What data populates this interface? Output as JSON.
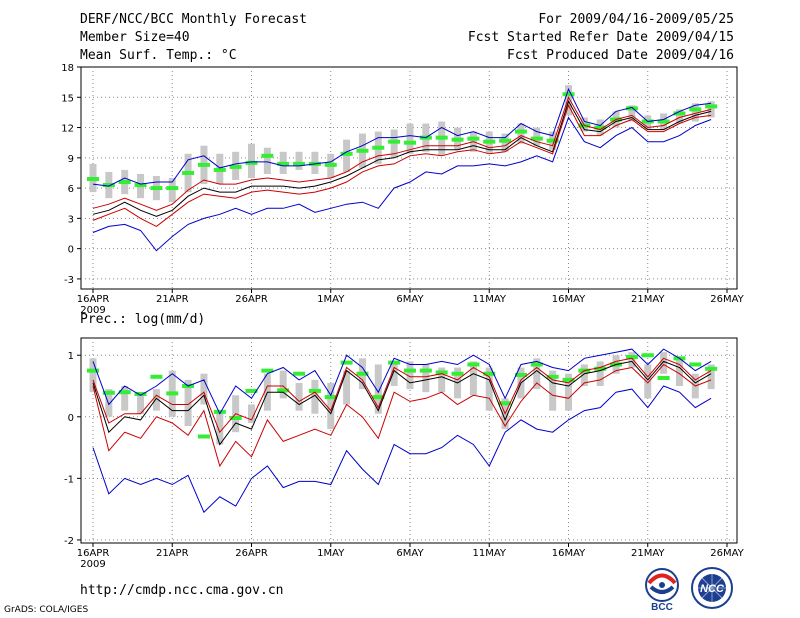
{
  "header": {
    "title": "DERF/NCC/BCC Monthly Forecast",
    "member_size": "Member Size=40",
    "variable": "Mean Surf. Temp.: °C",
    "period": "For 2009/04/16-2009/05/25",
    "fcst_started": "Fcst Started Refer Date 2009/04/15",
    "fcst_produced": "Fcst Produced Date 2009/04/16"
  },
  "footer": {
    "url": "http://cmdp.ncc.cma.gov.cn",
    "grads": "GrADS: COLA/IGES",
    "logo_bcc": "BCC",
    "logo_ncc": "NCC"
  },
  "colors": {
    "spread": "#c8c8c8",
    "mean": "#000000",
    "inner": "#cc0000",
    "outer": "#0000cc",
    "clim": "#33ee33"
  },
  "chart_data": [
    {
      "type": "line",
      "name": "temperature",
      "title": "Mean Surf. Temp.: °C",
      "xlabel": "",
      "ylabel": "",
      "xlim": [
        0,
        40
      ],
      "ylim": [
        -4,
        18
      ],
      "yticks": [
        -3,
        0,
        3,
        6,
        9,
        12,
        15,
        18
      ],
      "xticks": [
        {
          "x": 0,
          "label": "16APR"
        },
        {
          "x": 5,
          "label": "21APR"
        },
        {
          "x": 10,
          "label": "26APR"
        },
        {
          "x": 15,
          "label": "1MAY"
        },
        {
          "x": 20,
          "label": "6MAY"
        },
        {
          "x": 25,
          "label": "11MAY"
        },
        {
          "x": 30,
          "label": "16MAY"
        },
        {
          "x": 35,
          "label": "21MAY"
        },
        {
          "x": 40,
          "label": "26MAY"
        }
      ],
      "year_label": "2009",
      "bar_low": [
        5.6,
        5.0,
        5.4,
        5.0,
        4.8,
        4.6,
        5.6,
        6.4,
        6.4,
        6.8,
        7.0,
        7.4,
        7.4,
        7.8,
        7.4,
        7.0,
        7.6,
        8.0,
        8.4,
        9.0,
        9.4,
        9.6,
        9.2,
        9.8,
        9.6,
        9.4,
        9.6,
        10.4,
        10.2,
        9.8,
        13.2,
        11.6,
        11.2,
        12.0,
        12.6,
        11.8,
        11.8,
        12.4,
        12.6,
        13.0
      ],
      "bar_high": [
        8.4,
        7.6,
        7.8,
        7.4,
        7.2,
        7.0,
        9.4,
        10.2,
        9.4,
        9.6,
        10.4,
        10.0,
        9.6,
        9.6,
        9.6,
        9.4,
        10.8,
        11.4,
        11.6,
        11.8,
        12.4,
        12.4,
        12.6,
        12.0,
        11.6,
        11.6,
        11.4,
        12.4,
        12.0,
        11.6,
        16.2,
        13.0,
        12.8,
        13.6,
        14.2,
        13.2,
        13.4,
        13.8,
        14.4,
        14.6
      ],
      "clim": [
        6.9,
        6.3,
        6.6,
        6.3,
        6.0,
        6.0,
        7.5,
        8.3,
        7.8,
        8.1,
        8.5,
        9.2,
        8.4,
        8.4,
        8.4,
        8.3,
        9.4,
        9.7,
        10.0,
        10.6,
        10.5,
        11.0,
        11.0,
        10.8,
        10.9,
        10.6,
        10.7,
        11.6,
        10.9,
        10.7,
        15.3,
        12.2,
        12.0,
        12.8,
        13.9,
        12.6,
        12.6,
        13.4,
        13.8,
        14.1
      ],
      "series": [
        {
          "name": "outer_upper",
          "color": "outer",
          "values": [
            6.4,
            6.2,
            7.0,
            6.4,
            6.6,
            6.6,
            8.8,
            9.2,
            8.0,
            8.4,
            8.6,
            8.6,
            8.2,
            8.2,
            8.4,
            8.6,
            9.6,
            10.2,
            11.0,
            11.0,
            11.2,
            11.0,
            12.0,
            11.2,
            11.6,
            11.0,
            11.0,
            12.4,
            11.6,
            11.2,
            15.8,
            12.6,
            12.2,
            13.6,
            14.0,
            12.6,
            12.8,
            13.6,
            14.2,
            14.4
          ]
        },
        {
          "name": "inner_upper",
          "color": "inner",
          "values": [
            4.0,
            4.4,
            5.0,
            4.4,
            3.8,
            4.4,
            5.8,
            6.8,
            6.4,
            6.4,
            6.8,
            7.0,
            6.8,
            6.6,
            6.8,
            7.0,
            7.6,
            8.6,
            9.2,
            9.4,
            9.8,
            10.2,
            10.2,
            10.2,
            10.6,
            10.0,
            10.2,
            11.2,
            10.6,
            10.2,
            15.0,
            12.2,
            11.8,
            12.8,
            13.2,
            12.0,
            12.2,
            13.0,
            13.4,
            13.8
          ]
        },
        {
          "name": "mean",
          "color": "mean",
          "values": [
            3.4,
            3.8,
            4.6,
            3.8,
            3.2,
            3.8,
            5.2,
            6.0,
            5.6,
            5.6,
            6.2,
            6.2,
            6.2,
            6.0,
            6.2,
            6.6,
            7.2,
            8.0,
            8.8,
            9.0,
            9.6,
            9.8,
            9.8,
            9.8,
            10.2,
            9.8,
            9.8,
            11.0,
            10.2,
            9.6,
            14.6,
            11.8,
            11.6,
            12.6,
            13.0,
            11.8,
            11.8,
            12.6,
            13.2,
            13.6
          ]
        },
        {
          "name": "inner_lower",
          "color": "inner",
          "values": [
            2.8,
            3.4,
            4.0,
            3.0,
            2.2,
            3.4,
            4.6,
            5.4,
            5.2,
            5.0,
            5.6,
            5.8,
            5.6,
            5.4,
            5.6,
            6.0,
            6.6,
            7.6,
            8.2,
            8.4,
            9.2,
            9.4,
            9.2,
            9.6,
            9.8,
            9.4,
            9.6,
            10.6,
            10.0,
            9.4,
            14.2,
            11.2,
            11.2,
            12.2,
            12.8,
            11.6,
            11.6,
            12.4,
            13.0,
            13.2
          ]
        },
        {
          "name": "outer_lower",
          "color": "outer",
          "values": [
            1.6,
            2.2,
            2.4,
            1.8,
            -0.2,
            1.2,
            2.4,
            3.0,
            3.4,
            4.0,
            3.4,
            4.0,
            4.0,
            4.4,
            3.6,
            4.0,
            4.4,
            4.6,
            4.0,
            6.0,
            6.6,
            7.6,
            7.4,
            8.2,
            8.2,
            8.4,
            8.2,
            8.6,
            9.2,
            8.6,
            13.0,
            10.6,
            10.0,
            11.2,
            12.0,
            10.6,
            10.6,
            11.2,
            12.2,
            12.8
          ]
        }
      ]
    },
    {
      "type": "line",
      "name": "precipitation",
      "title": "Prec.: log(mm/d)",
      "xlabel": "",
      "ylabel": "",
      "xlim": [
        0,
        40
      ],
      "ylim": [
        -2.05,
        1.28
      ],
      "yticks": [
        -2,
        -1,
        0,
        1
      ],
      "xticks": [
        {
          "x": 0,
          "label": "16APR"
        },
        {
          "x": 5,
          "label": "21APR"
        },
        {
          "x": 10,
          "label": "26APR"
        },
        {
          "x": 15,
          "label": "1MAY"
        },
        {
          "x": 20,
          "label": "6MAY"
        },
        {
          "x": 25,
          "label": "11MAY"
        },
        {
          "x": 30,
          "label": "16MAY"
        },
        {
          "x": 35,
          "label": "21MAY"
        },
        {
          "x": 40,
          "label": "26MAY"
        }
      ],
      "year_label": "2009",
      "bar_low": [
        0.4,
        0.0,
        0.1,
        0.05,
        0.1,
        0.0,
        -0.15,
        0.2,
        -0.45,
        -0.25,
        -0.1,
        0.1,
        0.3,
        0.1,
        0.05,
        -0.2,
        0.2,
        0.45,
        0.05,
        0.5,
        0.45,
        0.4,
        0.4,
        0.3,
        0.35,
        0.1,
        -0.2,
        0.3,
        0.45,
        0.1,
        0.1,
        0.5,
        0.5,
        0.7,
        0.8,
        0.3,
        0.7,
        0.5,
        0.3,
        0.45
      ],
      "bar_high": [
        0.95,
        0.45,
        0.5,
        0.4,
        0.45,
        0.75,
        0.6,
        0.7,
        0.1,
        0.35,
        0.2,
        0.7,
        0.75,
        0.55,
        0.6,
        0.55,
        0.75,
        0.95,
        0.85,
        0.9,
        0.9,
        0.85,
        0.8,
        0.8,
        0.9,
        0.8,
        0.3,
        0.8,
        0.95,
        0.75,
        0.7,
        0.85,
        0.9,
        1.0,
        1.05,
        0.85,
        1.05,
        0.95,
        0.7,
        0.85
      ],
      "clim": [
        0.75,
        0.39,
        0.4,
        0.37,
        0.65,
        0.38,
        0.5,
        -0.32,
        0.08,
        -0.02,
        0.42,
        0.75,
        0.43,
        0.7,
        0.42,
        0.32,
        0.88,
        0.7,
        0.32,
        0.88,
        0.75,
        0.75,
        0.72,
        0.7,
        0.85,
        0.7,
        0.22,
        0.68,
        0.85,
        0.65,
        0.6,
        0.75,
        0.78,
        0.85,
        0.97,
        1.0,
        0.63,
        0.95,
        0.85,
        0.78
      ],
      "series": [
        {
          "name": "outer_upper",
          "color": "outer",
          "values": [
            0.9,
            0.2,
            0.5,
            0.35,
            0.5,
            0.7,
            0.5,
            0.6,
            0.05,
            0.5,
            0.3,
            0.7,
            0.8,
            0.6,
            0.75,
            0.35,
            1.0,
            0.8,
            0.4,
            0.95,
            0.85,
            0.85,
            0.9,
            0.85,
            1.0,
            0.85,
            0.3,
            0.85,
            0.9,
            0.8,
            0.75,
            0.95,
            1.0,
            1.05,
            1.1,
            0.85,
            1.1,
            0.95,
            0.75,
            0.9
          ]
        },
        {
          "name": "inner_upper",
          "color": "inner",
          "values": [
            0.6,
            -0.1,
            0.05,
            0.05,
            0.35,
            0.2,
            0.2,
            0.4,
            -0.25,
            0.05,
            -0.05,
            0.5,
            0.5,
            0.25,
            0.4,
            0.1,
            0.8,
            0.6,
            0.15,
            0.8,
            0.65,
            0.65,
            0.7,
            0.6,
            0.8,
            0.65,
            0.05,
            0.6,
            0.8,
            0.6,
            0.55,
            0.75,
            0.8,
            0.9,
            0.95,
            0.65,
            0.95,
            0.85,
            0.6,
            0.75
          ]
        },
        {
          "name": "mean",
          "color": "mean",
          "values": [
            0.55,
            -0.25,
            0.0,
            -0.05,
            0.3,
            0.1,
            0.1,
            0.35,
            -0.45,
            -0.1,
            -0.2,
            0.4,
            0.4,
            0.2,
            0.35,
            0.05,
            0.75,
            0.55,
            0.1,
            0.75,
            0.55,
            0.6,
            0.65,
            0.55,
            0.7,
            0.6,
            -0.05,
            0.55,
            0.75,
            0.55,
            0.5,
            0.7,
            0.75,
            0.85,
            0.9,
            0.6,
            0.9,
            0.8,
            0.55,
            0.7
          ]
        },
        {
          "name": "inner_lower",
          "color": "inner",
          "values": [
            0.5,
            -0.55,
            -0.25,
            -0.35,
            0.0,
            -0.1,
            -0.3,
            0.1,
            -0.8,
            -0.4,
            -0.65,
            -0.05,
            -0.4,
            -0.3,
            -0.2,
            -0.3,
            0.2,
            0.0,
            -0.35,
            0.4,
            0.25,
            0.3,
            0.4,
            0.2,
            0.35,
            0.3,
            -0.15,
            0.25,
            0.55,
            0.35,
            0.3,
            0.55,
            0.6,
            0.75,
            0.8,
            0.55,
            0.85,
            0.7,
            0.5,
            0.6
          ]
        },
        {
          "name": "outer_lower",
          "color": "outer",
          "values": [
            -0.5,
            -1.25,
            -1.0,
            -1.1,
            -1.0,
            -1.1,
            -0.95,
            -1.55,
            -1.3,
            -1.45,
            -1.0,
            -0.8,
            -1.15,
            -1.05,
            -1.05,
            -1.1,
            -0.55,
            -0.85,
            -1.1,
            -0.45,
            -0.6,
            -0.6,
            -0.5,
            -0.3,
            -0.45,
            -0.8,
            -0.25,
            -0.05,
            -0.2,
            -0.25,
            -0.05,
            0.1,
            0.15,
            0.4,
            0.45,
            0.15,
            0.5,
            0.4,
            0.15,
            0.3
          ]
        }
      ]
    }
  ]
}
